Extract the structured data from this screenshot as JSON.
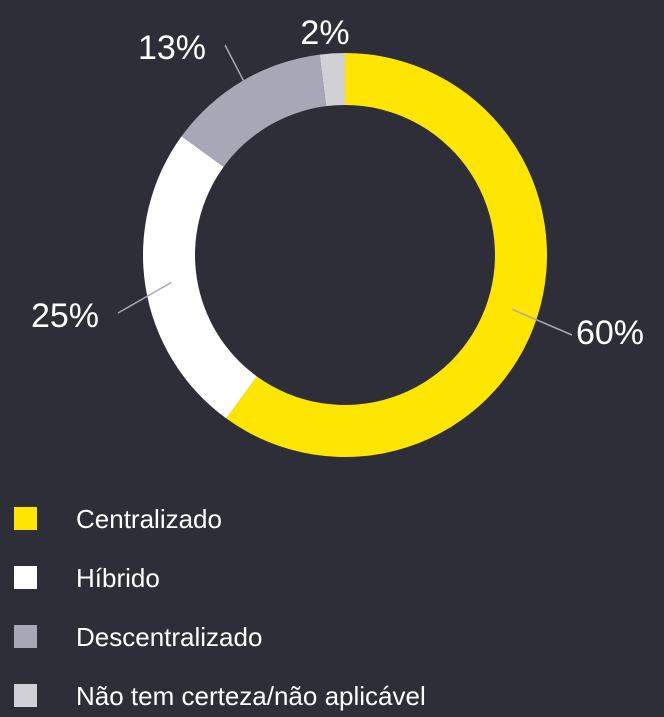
{
  "chart_data": {
    "type": "pie",
    "categories": [
      "Centralizado",
      "Híbrido",
      "Descentralizado",
      "Não tem certeza/não aplicável"
    ],
    "values": [
      60,
      25,
      13,
      2
    ],
    "value_labels": [
      "60%",
      "25%",
      "13%",
      "2%"
    ],
    "colors": [
      "#ffe600",
      "#ffffff",
      "#a7a7b5",
      "#d0d0d6"
    ],
    "legend": "bottom"
  }
}
